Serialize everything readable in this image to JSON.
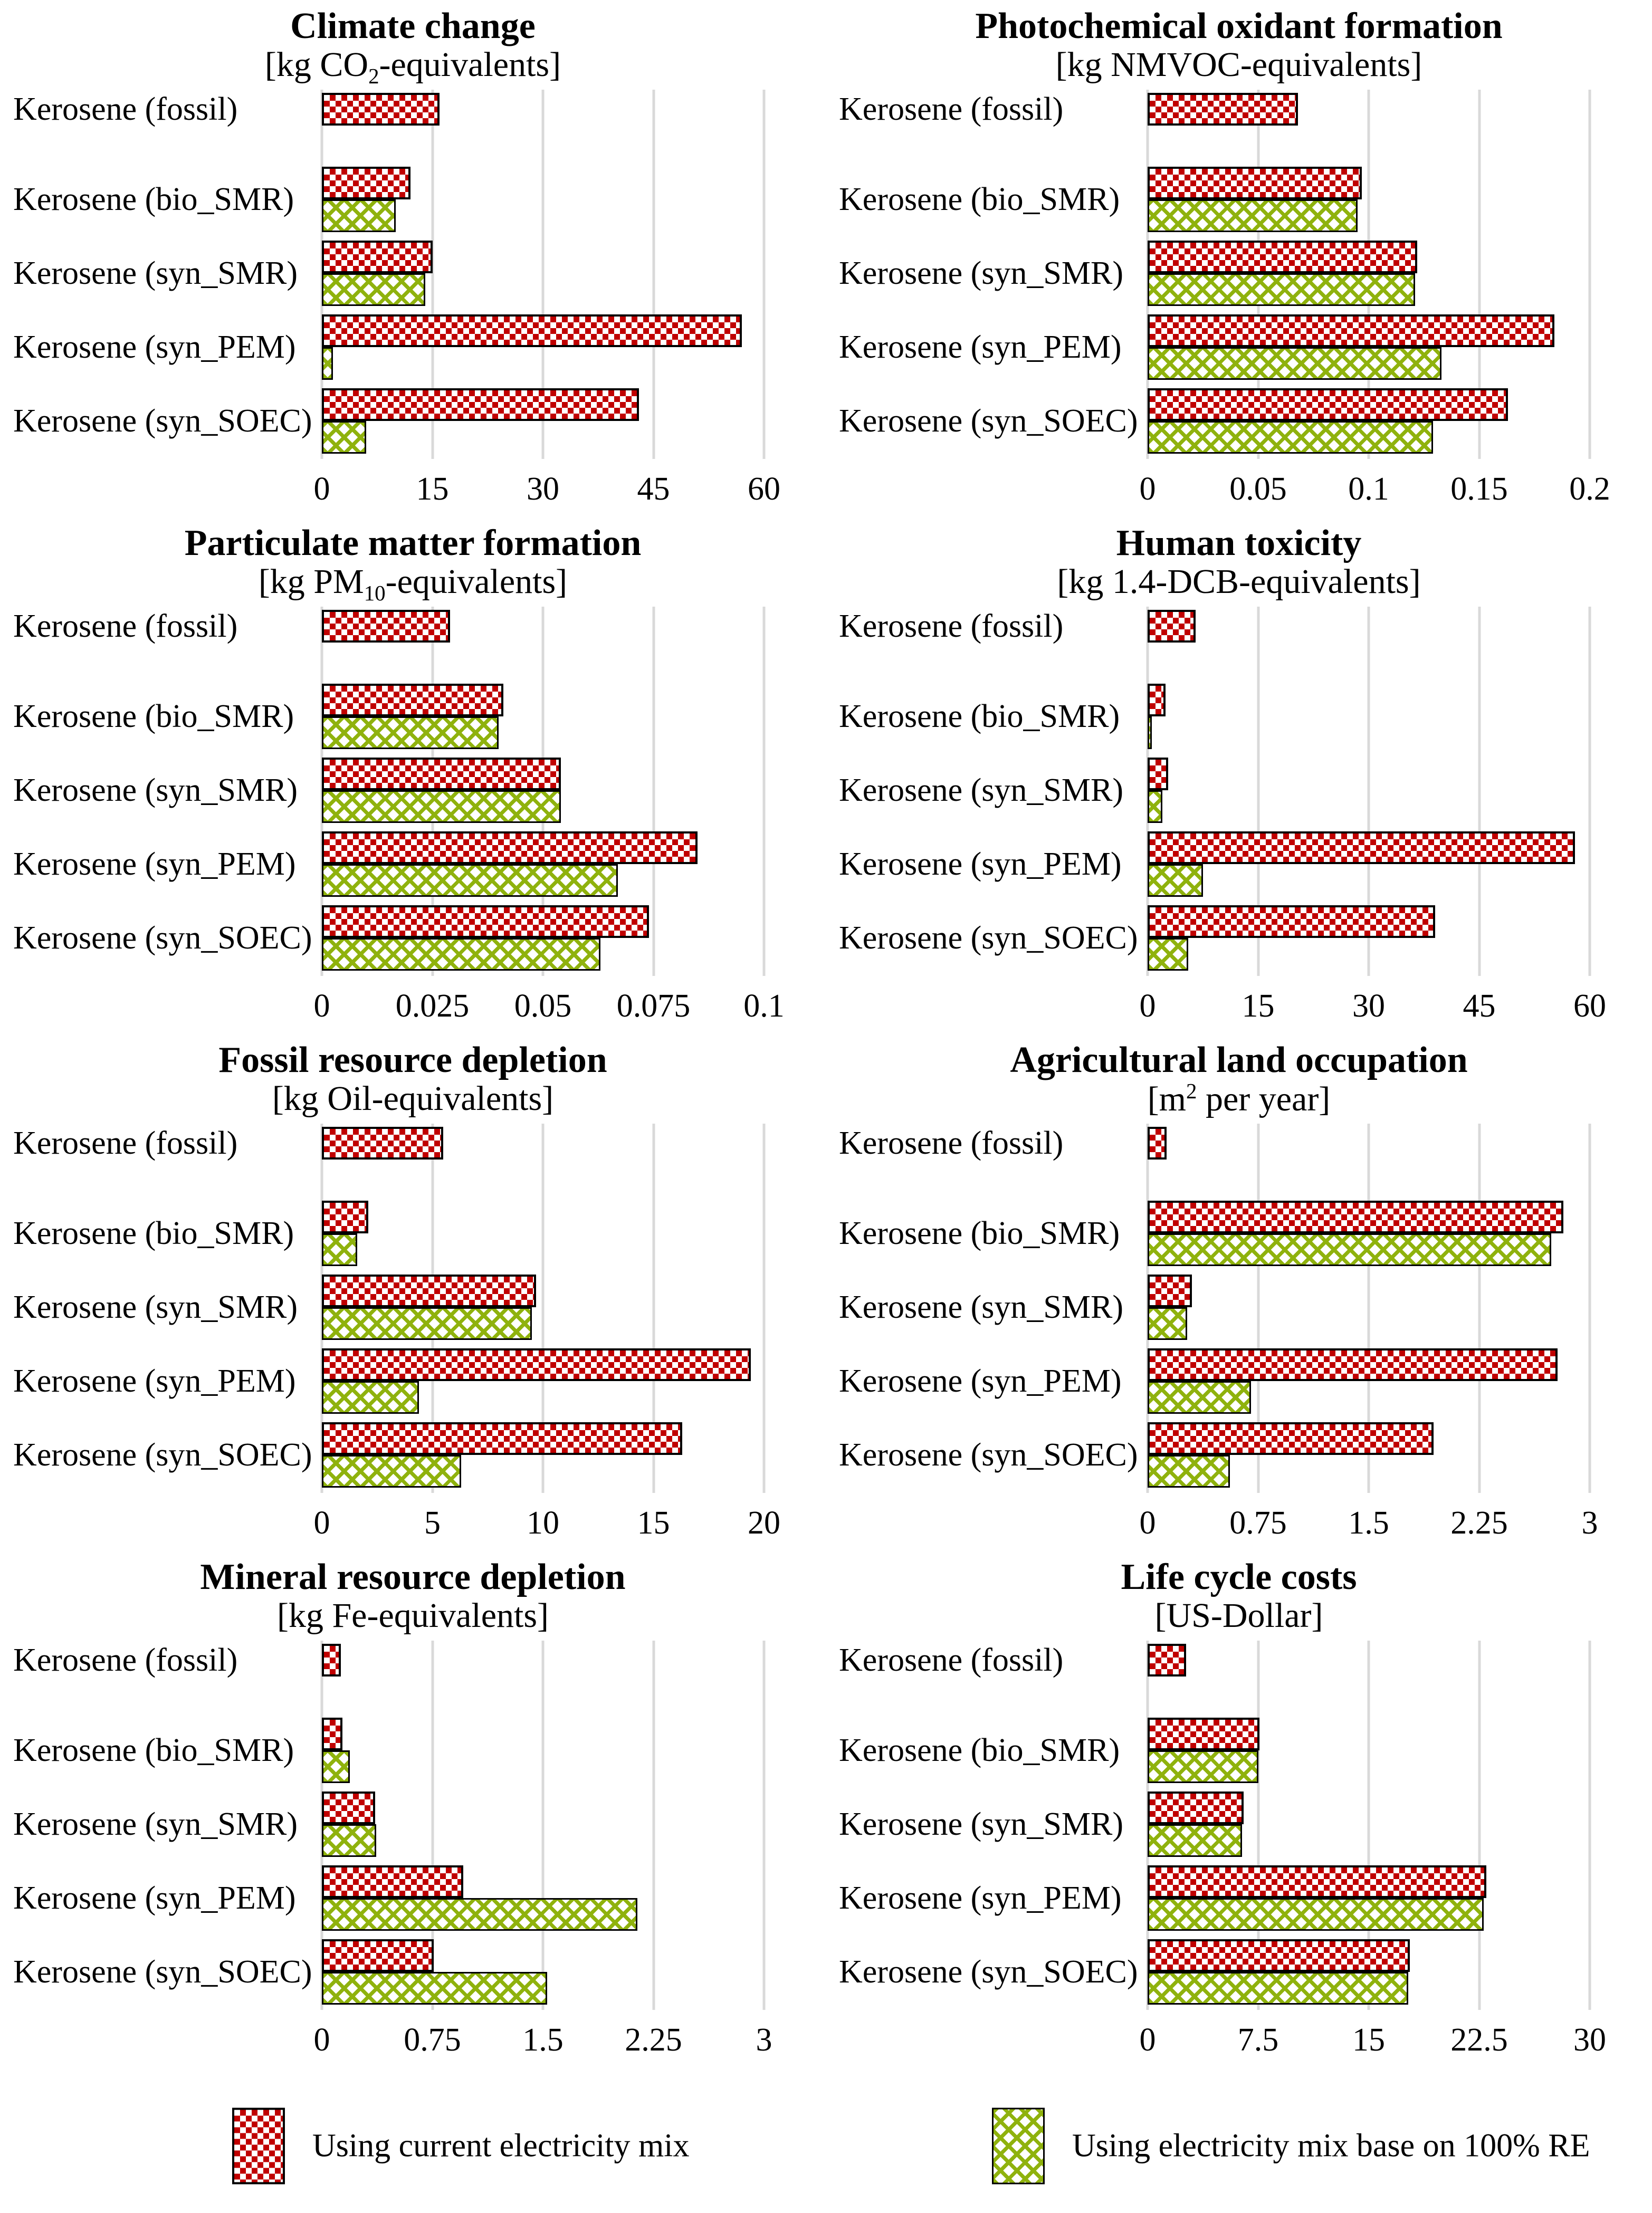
{
  "legend": {
    "position": "bottom",
    "items": [
      {
        "label": "Using current electricity mix",
        "swatch": "red-checker-pattern",
        "color": "#C00000"
      },
      {
        "label": "Using electricity mix base on 100% RE",
        "swatch": "green-zigzag-pattern",
        "color": "#8FB20D"
      }
    ]
  },
  "colors": {
    "current": "#C00000",
    "re": "#8FB20D",
    "gridline": "#D9D9D9",
    "text": "#000000"
  },
  "chart_data": [
    {
      "type": "bar",
      "orientation": "horizontal",
      "grid": true,
      "title": "Climate change",
      "unit": {
        "pre": "[kg CO",
        "script": "2",
        "script_type": "sub",
        "post": "-equivalents]"
      },
      "xlim": [
        0,
        60
      ],
      "ticks": [
        "0",
        "15",
        "30",
        "45",
        "60"
      ],
      "categories": [
        "Kerosene (fossil)",
        "Kerosene (bio_SMR)",
        "Kerosene (syn_SMR)",
        "Kerosene (syn_PEM)",
        "Kerosene (syn_SOEC)"
      ],
      "series": [
        {
          "name": "Using current electricity mix",
          "values": [
            16,
            12,
            15,
            57,
            43
          ]
        },
        {
          "name": "Using electricity mix base on 100% RE",
          "values": [
            null,
            10,
            14,
            1.5,
            6
          ]
        }
      ]
    },
    {
      "type": "bar",
      "orientation": "horizontal",
      "grid": true,
      "title": "Photochemical oxidant formation",
      "unit": {
        "pre": "[kg NMVOC-equivalents]",
        "script": "",
        "script_type": "none",
        "post": ""
      },
      "xlim": [
        0,
        0.2
      ],
      "ticks": [
        "0",
        "0.05",
        "0.1",
        "0.15",
        "0.2"
      ],
      "categories": [
        "Kerosene (fossil)",
        "Kerosene (bio_SMR)",
        "Kerosene (syn_SMR)",
        "Kerosene (syn_PEM)",
        "Kerosene (syn_SOEC)"
      ],
      "series": [
        {
          "name": "Using current electricity mix",
          "values": [
            0.068,
            0.097,
            0.122,
            0.184,
            0.163
          ]
        },
        {
          "name": "Using electricity mix base on 100% RE",
          "values": [
            null,
            0.095,
            0.121,
            0.133,
            0.129
          ]
        }
      ]
    },
    {
      "type": "bar",
      "orientation": "horizontal",
      "grid": true,
      "title": "Particulate matter formation",
      "unit": {
        "pre": "[kg PM",
        "script": "10",
        "script_type": "sub",
        "post": "-equivalents]"
      },
      "xlim": [
        0,
        0.1
      ],
      "ticks": [
        "0",
        "0.025",
        "0.05",
        "0.075",
        "0.1"
      ],
      "categories": [
        "Kerosene (fossil)",
        "Kerosene (bio_SMR)",
        "Kerosene (syn_SMR)",
        "Kerosene (syn_PEM)",
        "Kerosene (syn_SOEC)"
      ],
      "series": [
        {
          "name": "Using current electricity mix",
          "values": [
            0.029,
            0.041,
            0.054,
            0.085,
            0.074
          ]
        },
        {
          "name": "Using electricity mix base on 100% RE",
          "values": [
            null,
            0.04,
            0.054,
            0.067,
            0.063
          ]
        }
      ]
    },
    {
      "type": "bar",
      "orientation": "horizontal",
      "grid": true,
      "title": "Human toxicity",
      "unit": {
        "pre": "[kg 1.4-DCB-equivalents]",
        "script": "",
        "script_type": "none",
        "post": ""
      },
      "xlim": [
        0,
        60
      ],
      "ticks": [
        "0",
        "15",
        "30",
        "45",
        "60"
      ],
      "categories": [
        "Kerosene (fossil)",
        "Kerosene (bio_SMR)",
        "Kerosene (syn_SMR)",
        "Kerosene (syn_PEM)",
        "Kerosene (syn_SOEC)"
      ],
      "series": [
        {
          "name": "Using current electricity mix",
          "values": [
            6.5,
            2.4,
            2.8,
            58,
            39
          ]
        },
        {
          "name": "Using electricity mix base on 100% RE",
          "values": [
            null,
            0.6,
            2.0,
            7.5,
            5.5
          ]
        }
      ]
    },
    {
      "type": "bar",
      "orientation": "horizontal",
      "grid": true,
      "title": "Fossil resource depletion",
      "unit": {
        "pre": "[kg Oil-equivalents]",
        "script": "",
        "script_type": "none",
        "post": ""
      },
      "xlim": [
        0,
        20
      ],
      "ticks": [
        "0",
        "5",
        "10",
        "15",
        "20"
      ],
      "categories": [
        "Kerosene (fossil)",
        "Kerosene (bio_SMR)",
        "Kerosene (syn_SMR)",
        "Kerosene (syn_PEM)",
        "Kerosene (syn_SOEC)"
      ],
      "series": [
        {
          "name": "Using current electricity mix",
          "values": [
            5.5,
            2.1,
            9.7,
            19.4,
            16.3
          ]
        },
        {
          "name": "Using electricity mix base on 100% RE",
          "values": [
            null,
            1.6,
            9.5,
            4.4,
            6.3
          ]
        }
      ]
    },
    {
      "type": "bar",
      "orientation": "horizontal",
      "grid": true,
      "title": "Agricultural land occupation",
      "unit": {
        "pre": "[m",
        "script": "2",
        "script_type": "sup",
        "post": " per year]"
      },
      "xlim": [
        0,
        3
      ],
      "ticks": [
        "0",
        "0.75",
        "1.5",
        "2.25",
        "3"
      ],
      "categories": [
        "Kerosene (fossil)",
        "Kerosene (bio_SMR)",
        "Kerosene (syn_SMR)",
        "Kerosene (syn_PEM)",
        "Kerosene (syn_SOEC)"
      ],
      "series": [
        {
          "name": "Using current electricity mix",
          "values": [
            0.13,
            2.82,
            0.3,
            2.78,
            1.94
          ]
        },
        {
          "name": "Using electricity mix base on 100% RE",
          "values": [
            null,
            2.74,
            0.27,
            0.7,
            0.56
          ]
        }
      ]
    },
    {
      "type": "bar",
      "orientation": "horizontal",
      "grid": true,
      "title": "Mineral resource depletion",
      "unit": {
        "pre": "[kg Fe-equivalents]",
        "script": "",
        "script_type": "none",
        "post": ""
      },
      "xlim": [
        0,
        3
      ],
      "ticks": [
        "0",
        "0.75",
        "1.5",
        "2.25",
        "3"
      ],
      "categories": [
        "Kerosene (fossil)",
        "Kerosene (bio_SMR)",
        "Kerosene (syn_SMR)",
        "Kerosene (syn_PEM)",
        "Kerosene (syn_SOEC)"
      ],
      "series": [
        {
          "name": "Using current electricity mix",
          "values": [
            0.13,
            0.14,
            0.36,
            0.96,
            0.76
          ]
        },
        {
          "name": "Using electricity mix base on 100% RE",
          "values": [
            null,
            0.19,
            0.37,
            2.14,
            1.53
          ]
        }
      ]
    },
    {
      "type": "bar",
      "orientation": "horizontal",
      "grid": true,
      "title": "Life cycle costs",
      "unit": {
        "pre": "[US-Dollar]",
        "script": "",
        "script_type": "none",
        "post": ""
      },
      "xlim": [
        0,
        30
      ],
      "ticks": [
        "0",
        "7.5",
        "15",
        "22.5",
        "30"
      ],
      "categories": [
        "Kerosene (fossil)",
        "Kerosene (bio_SMR)",
        "Kerosene (syn_SMR)",
        "Kerosene (syn_PEM)",
        "Kerosene (syn_SOEC)"
      ],
      "series": [
        {
          "name": "Using current electricity mix",
          "values": [
            2.6,
            7.6,
            6.5,
            23,
            17.8
          ]
        },
        {
          "name": "Using electricity mix base on 100% RE",
          "values": [
            null,
            7.5,
            6.4,
            22.8,
            17.7
          ]
        }
      ]
    }
  ]
}
